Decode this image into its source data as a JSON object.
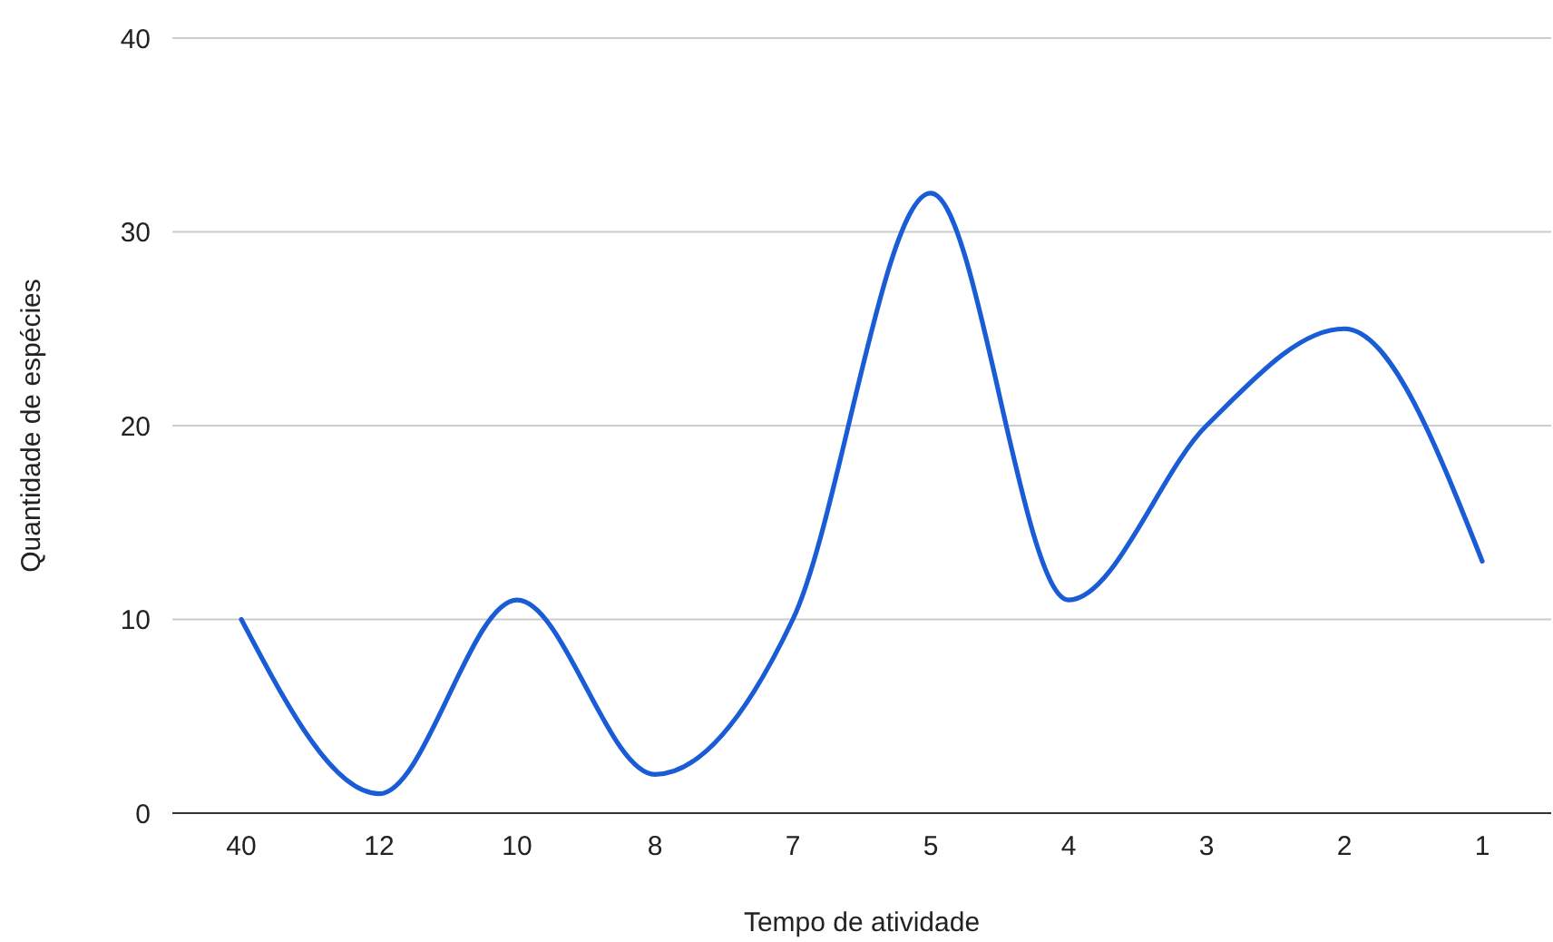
{
  "chart_data": {
    "type": "line",
    "xlabel": "Tempo de atividade",
    "ylabel": "Quantidade de espécies",
    "categories": [
      "40",
      "12",
      "10",
      "8",
      "7",
      "5",
      "4",
      "3",
      "2",
      "1"
    ],
    "series": [
      {
        "color": "#1a5bd6",
        "values": [
          10,
          1,
          11,
          2,
          10,
          32,
          11,
          20,
          25,
          13
        ]
      }
    ],
    "ylim": [
      0,
      40
    ],
    "yticks": [
      0,
      10,
      20,
      30,
      40
    ],
    "grid": "y",
    "marker": "none",
    "line_style": "solid"
  }
}
